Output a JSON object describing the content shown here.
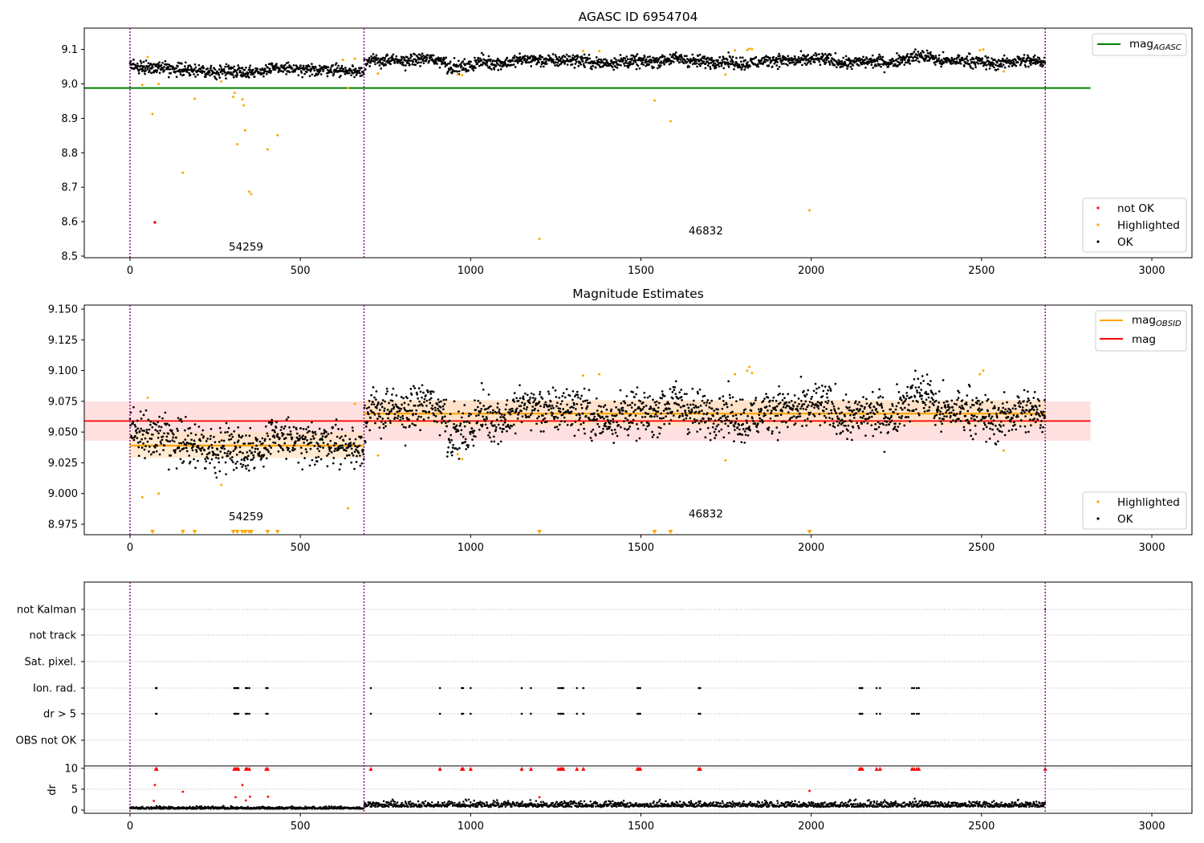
{
  "colors": {
    "ok": "#000000",
    "highlighted": "#ffa500",
    "not_ok": "#ff0000",
    "mag_agasc": "#008000",
    "mag_obsid": "#ffa500",
    "mag": "#ff0000",
    "obsid_boundary": "#800080",
    "mag_band": "#ffcccc",
    "obsid_band": "#ffe3c2"
  },
  "chart_data": [
    {
      "type": "scatter",
      "title": "AGASC ID 6954704",
      "xlim": [
        -135,
        3120
      ],
      "ylim": [
        8.495,
        9.165
      ],
      "xticks": [
        "0",
        "500",
        "1000",
        "1500",
        "2000",
        "2500",
        "3000"
      ],
      "yticks": [
        "8.5",
        "8.6",
        "8.7",
        "8.8",
        "8.9",
        "9.0",
        "9.1"
      ],
      "grid": false,
      "obsid_boundaries": [
        0,
        687,
        2687
      ],
      "mag_agasc": {
        "value": 8.988,
        "x_range": [
          -135,
          2820
        ]
      },
      "obsids": [
        {
          "label": "54259",
          "x_start": 0,
          "x_end": 687,
          "base": 9.038
        },
        {
          "label": "46832",
          "x_start": 687,
          "x_end": 2687,
          "base": 9.066
        }
      ],
      "series": [
        {
          "name": "not OK",
          "color": "#ff0000",
          "points": [
            [
              73,
              8.598
            ]
          ]
        },
        {
          "name": "Highlighted",
          "color": "#ffa500",
          "points": [
            [
              36,
              8.997
            ],
            [
              52,
              9.078
            ],
            [
              66,
              8.913
            ],
            [
              84,
              9.0
            ],
            [
              155,
              8.742
            ],
            [
              190,
              8.957
            ],
            [
              268,
              9.007
            ],
            [
              303,
              8.962
            ],
            [
              307,
              8.974
            ],
            [
              315,
              8.825
            ],
            [
              330,
              8.955
            ],
            [
              334,
              8.938
            ],
            [
              338,
              8.865
            ],
            [
              350,
              8.687
            ],
            [
              356,
              8.68
            ],
            [
              404,
              8.81
            ],
            [
              433,
              8.851
            ],
            [
              625,
              9.07
            ],
            [
              640,
              8.988
            ],
            [
              660,
              9.073
            ],
            [
              728,
              9.03
            ],
            [
              962,
              9.028
            ],
            [
              975,
              9.025
            ],
            [
              1202,
              8.55
            ],
            [
              1330,
              9.096
            ],
            [
              1378,
              9.095
            ],
            [
              1540,
              8.952
            ],
            [
              1587,
              8.892
            ],
            [
              1748,
              9.027
            ],
            [
              1776,
              9.097
            ],
            [
              1812,
              9.098
            ],
            [
              1818,
              9.102
            ],
            [
              1826,
              9.101
            ],
            [
              1995,
              8.633
            ],
            [
              2495,
              9.098
            ],
            [
              2505,
              9.1
            ],
            [
              2565,
              9.036
            ]
          ]
        },
        {
          "name": "OK",
          "color": "#000000",
          "points": []
        }
      ],
      "legend_lines": [
        {
          "label": "mag",
          "subscript": "AGASC",
          "color": "#008000"
        }
      ],
      "legend_points": [
        {
          "label": "not OK",
          "color": "#ff0000"
        },
        {
          "label": "Highlighted",
          "color": "#ffa500"
        },
        {
          "label": "OK",
          "color": "#000000"
        }
      ]
    },
    {
      "type": "scatter",
      "title": "Magnitude Estimates",
      "xlim": [
        -135,
        3120
      ],
      "ylim": [
        8.966,
        9.152
      ],
      "xticks": [
        "0",
        "500",
        "1000",
        "1500",
        "2000",
        "2500",
        "3000"
      ],
      "yticks": [
        "8.975",
        "9.000",
        "9.025",
        "9.050",
        "9.075",
        "9.100",
        "9.125",
        "9.150"
      ],
      "grid": false,
      "obsid_boundaries": [
        0,
        687,
        2687
      ],
      "mag": {
        "value": 9.059,
        "band": [
          9.043,
          9.075
        ],
        "x_range": [
          -135,
          2820
        ]
      },
      "mag_obsid": [
        {
          "x_start": 0,
          "x_end": 687,
          "value": 9.039,
          "band": [
            9.029,
            9.05
          ]
        },
        {
          "x_start": 687,
          "x_end": 2687,
          "value": 9.065,
          "band": [
            9.055,
            9.076
          ]
        }
      ],
      "obsid_labels": [
        {
          "label": "54259",
          "x": 290,
          "y": 8.981
        },
        {
          "label": "46832",
          "x": 1640,
          "y": 8.983
        }
      ],
      "series": [
        {
          "name": "Highlighted",
          "color": "#ffa500",
          "points": [
            [
              36,
              8.997
            ],
            [
              52,
              9.078
            ],
            [
              84,
              9.0
            ],
            [
              268,
              9.007
            ],
            [
              640,
              8.988
            ],
            [
              660,
              9.073
            ],
            [
              728,
              9.031
            ],
            [
              962,
              9.032
            ],
            [
              975,
              9.028
            ],
            [
              1330,
              9.096
            ],
            [
              1378,
              9.097
            ],
            [
              1748,
              9.027
            ],
            [
              1776,
              9.097
            ],
            [
              1812,
              9.1
            ],
            [
              1818,
              9.103
            ],
            [
              1826,
              9.098
            ],
            [
              2495,
              9.097
            ],
            [
              2505,
              9.1
            ],
            [
              2565,
              9.035
            ]
          ]
        },
        {
          "name": "OK",
          "color": "#000000",
          "points": []
        }
      ],
      "clipped_below": [
        66,
        155,
        190,
        303,
        315,
        330,
        338,
        350,
        356,
        404,
        433,
        1202,
        1540,
        1587,
        1995
      ],
      "legend_lines": [
        {
          "label": "mag",
          "subscript": "OBSID",
          "color": "#ffa500"
        },
        {
          "label": "mag",
          "subscript": "",
          "color": "#ff0000"
        }
      ],
      "legend_points": [
        {
          "label": "Highlighted",
          "color": "#ffa500"
        },
        {
          "label": "OK",
          "color": "#000000"
        }
      ]
    },
    {
      "type": "scatter",
      "title": "",
      "xlim": [
        -135,
        3120
      ],
      "xticks": [
        "0",
        "500",
        "1000",
        "1500",
        "2000",
        "2500",
        "3000"
      ],
      "flag_rows": [
        "not Kalman",
        "not track",
        "Sat. pixel.",
        "Ion. rad.",
        "dr > 5",
        "OBS not OK"
      ],
      "flagged_x": [
        76,
        78,
        306,
        310,
        314,
        318,
        340,
        344,
        350,
        400,
        404,
        707,
        910,
        974,
        978,
        1000,
        1150,
        1177,
        1258,
        1264,
        1268,
        1272,
        1312,
        1331,
        1490,
        1494,
        1498,
        1670,
        1674,
        2142,
        2146,
        2150,
        2192,
        2202,
        2296,
        2302,
        2310,
        2316
      ],
      "obsid_boundaries": [
        0,
        687,
        2687
      ],
      "dr_ylabel": "dr",
      "dr_ylim": [
        -1,
        11
      ],
      "dr_yticks": [
        "0",
        "5",
        "10"
      ],
      "dr_outliers": [
        [
          70,
          2.2
        ],
        [
          73,
          6.0
        ],
        [
          155,
          4.4
        ],
        [
          310,
          3.1
        ],
        [
          330,
          6.0
        ],
        [
          340,
          2.3
        ],
        [
          352,
          3.2
        ],
        [
          405,
          3.2
        ],
        [
          1202,
          3.1
        ],
        [
          1995,
          4.6
        ]
      ],
      "dr_clipped": [
        76,
        78,
        306,
        310,
        314,
        318,
        340,
        344,
        350,
        400,
        404,
        707,
        910,
        974,
        978,
        1000,
        1150,
        1177,
        1258,
        1264,
        1268,
        1272,
        1312,
        1331,
        1490,
        1494,
        1498,
        1670,
        1674,
        2142,
        2146,
        2150,
        2192,
        2202,
        2296,
        2302,
        2310,
        2316,
        2687
      ]
    }
  ]
}
